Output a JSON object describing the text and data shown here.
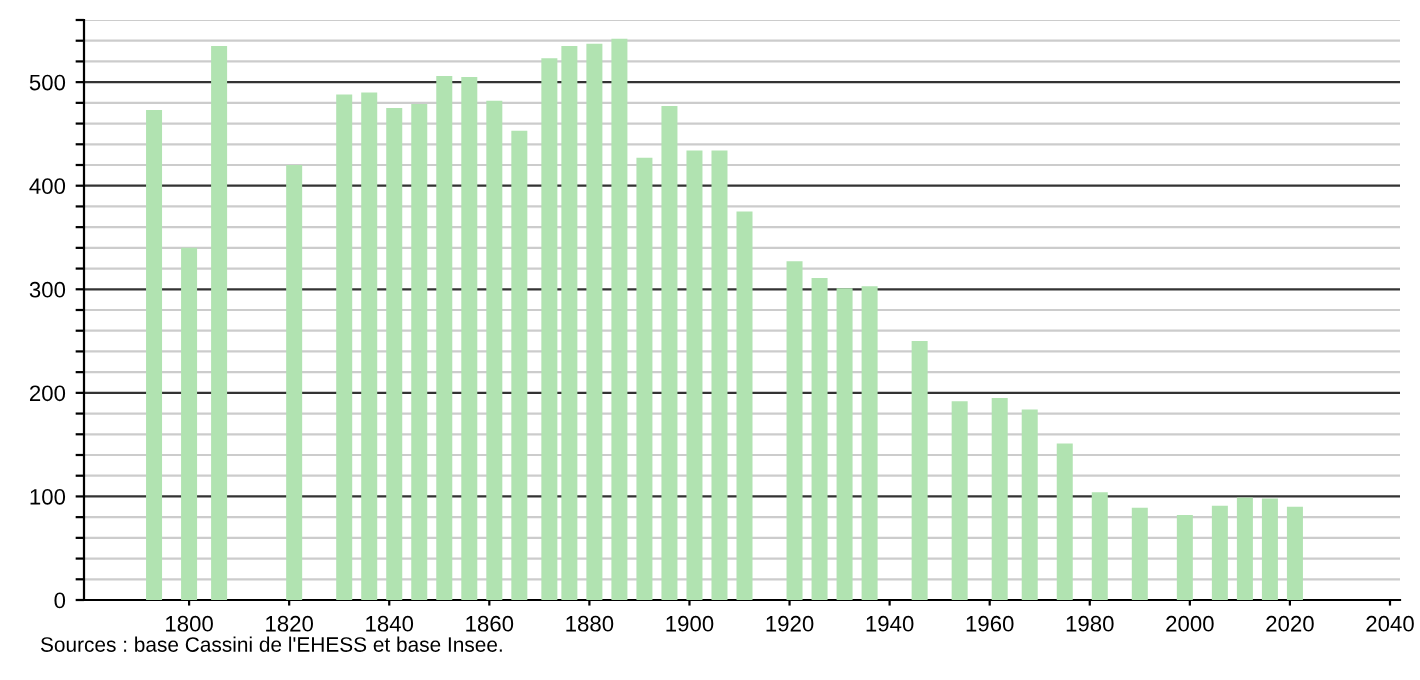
{
  "chart_data": {
    "type": "bar",
    "x": [
      1793,
      1800,
      1806,
      1821,
      1831,
      1836,
      1841,
      1846,
      1851,
      1856,
      1861,
      1866,
      1872,
      1876,
      1881,
      1886,
      1891,
      1896,
      1901,
      1906,
      1911,
      1921,
      1926,
      1931,
      1936,
      1946,
      1954,
      1962,
      1968,
      1975,
      1982,
      1990,
      1999,
      2006,
      2011,
      2016,
      2021
    ],
    "values": [
      473,
      340,
      535,
      420,
      488,
      490,
      475,
      479,
      506,
      505,
      482,
      453,
      523,
      535,
      537,
      542,
      427,
      477,
      434,
      434,
      375,
      327,
      311,
      301,
      303,
      250,
      192,
      195,
      184,
      151,
      104,
      89,
      82,
      91,
      99,
      98,
      90
    ],
    "color": "#b1e3b1",
    "xlim": [
      1779,
      2042
    ],
    "xticks": [
      1800,
      1820,
      1840,
      1860,
      1880,
      1900,
      1920,
      1940,
      1960,
      1980,
      2000,
      2020,
      2040
    ],
    "ylim": [
      0,
      560
    ],
    "yticks": [
      0,
      {
        "value": 20,
        "label": null
      },
      {
        "value": 40,
        "label": null
      },
      {
        "value": 60,
        "label": null
      },
      {
        "value": 80,
        "label": null
      },
      100,
      {
        "value": 120,
        "label": null
      },
      {
        "value": 140,
        "label": null
      },
      {
        "value": 160,
        "label": null
      },
      {
        "value": 180,
        "label": null
      },
      200,
      {
        "value": 220,
        "label": null
      },
      {
        "value": 240,
        "label": null
      },
      {
        "value": 260,
        "label": null
      },
      {
        "value": 280,
        "label": null
      },
      300,
      {
        "value": 320,
        "label": null
      },
      {
        "value": 340,
        "label": null
      },
      {
        "value": 360,
        "label": null
      },
      {
        "value": 380,
        "label": null
      },
      400,
      {
        "value": 420,
        "label": null
      },
      {
        "value": 440,
        "label": null
      },
      {
        "value": 460,
        "label": null
      },
      {
        "value": 480,
        "label": null
      },
      500,
      {
        "value": 520,
        "label": null
      },
      {
        "value": 540,
        "label": null
      },
      {
        "value": 560,
        "label": null
      }
    ],
    "grid": "y",
    "annotations": [
      "Sources : base Cassini de l'EHESS et base Insee."
    ]
  }
}
